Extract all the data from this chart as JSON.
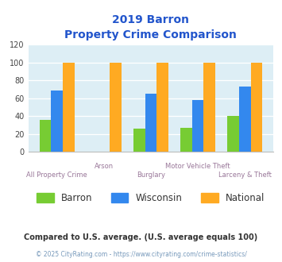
{
  "title_line1": "2019 Barron",
  "title_line2": "Property Crime Comparison",
  "categories": [
    "All Property Crime",
    "Arson",
    "Burglary",
    "Motor Vehicle Theft",
    "Larceny & Theft"
  ],
  "barron_values": [
    36,
    0,
    26,
    27,
    40
  ],
  "wisconsin_values": [
    69,
    0,
    65,
    58,
    73
  ],
  "national_values": [
    100,
    100,
    100,
    100,
    100
  ],
  "barron_color": "#77cc33",
  "wisconsin_color": "#3388ee",
  "national_color": "#ffaa22",
  "ylim": [
    0,
    120
  ],
  "yticks": [
    0,
    20,
    40,
    60,
    80,
    100,
    120
  ],
  "title_color": "#2255cc",
  "xlabel_color": "#997799",
  "background_color": "#ddeef5",
  "grid_color": "#ffffff",
  "legend_labels": [
    "Barron",
    "Wisconsin",
    "National"
  ],
  "legend_text_color": "#333333",
  "footnote1": "Compared to U.S. average. (U.S. average equals 100)",
  "footnote2": "© 2025 CityRating.com - https://www.cityrating.com/crime-statistics/",
  "footnote1_color": "#333333",
  "footnote2_color": "#7799bb"
}
